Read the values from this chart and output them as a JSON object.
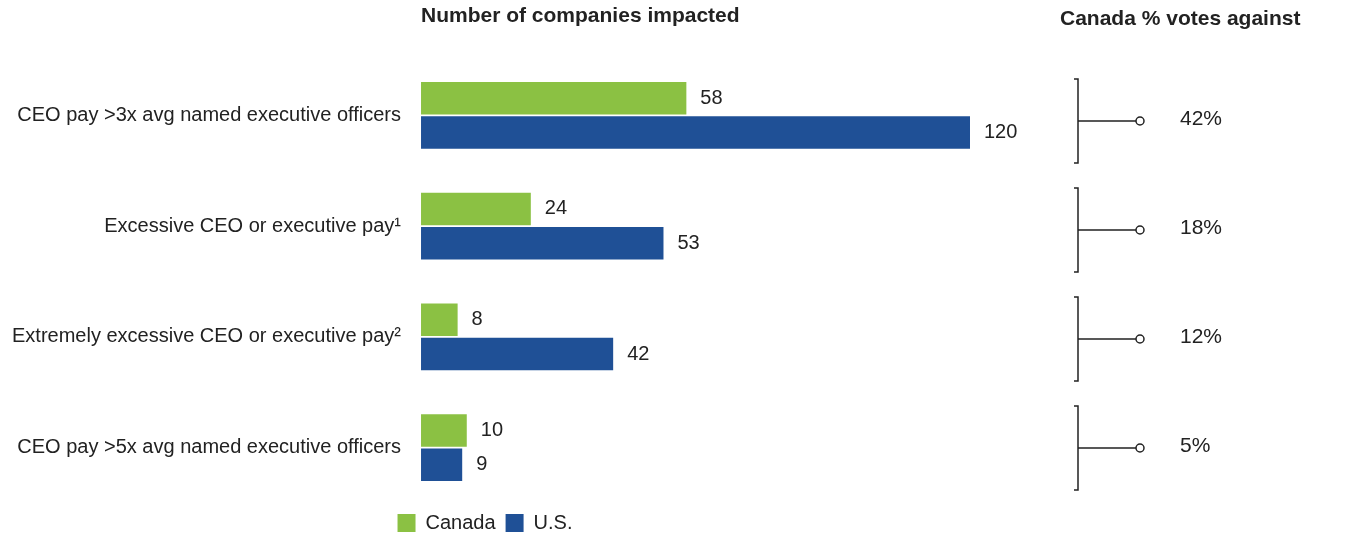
{
  "chart_data": [
    {
      "type": "bar",
      "orientation": "horizontal",
      "title": "Number of companies impacted",
      "categories": [
        "CEO pay >3x avg named executive officers",
        "Excessive CEO or executive pay¹",
        "Extremely excessive CEO or executive pay²",
        "CEO pay >5x avg named executive officers"
      ],
      "series": [
        {
          "name": "Canada",
          "color": "#8bc143",
          "values": [
            58,
            24,
            8,
            10
          ]
        },
        {
          "name": "U.S.",
          "color": "#1f5096",
          "values": [
            120,
            53,
            42,
            9
          ]
        }
      ],
      "data_labels": true,
      "legend": "bottom",
      "tick_labels": "y"
    },
    {
      "type": "other",
      "title": "Canada % votes against",
      "annotations": [
        "42%",
        "18%",
        "12%",
        "5%"
      ]
    }
  ]
}
